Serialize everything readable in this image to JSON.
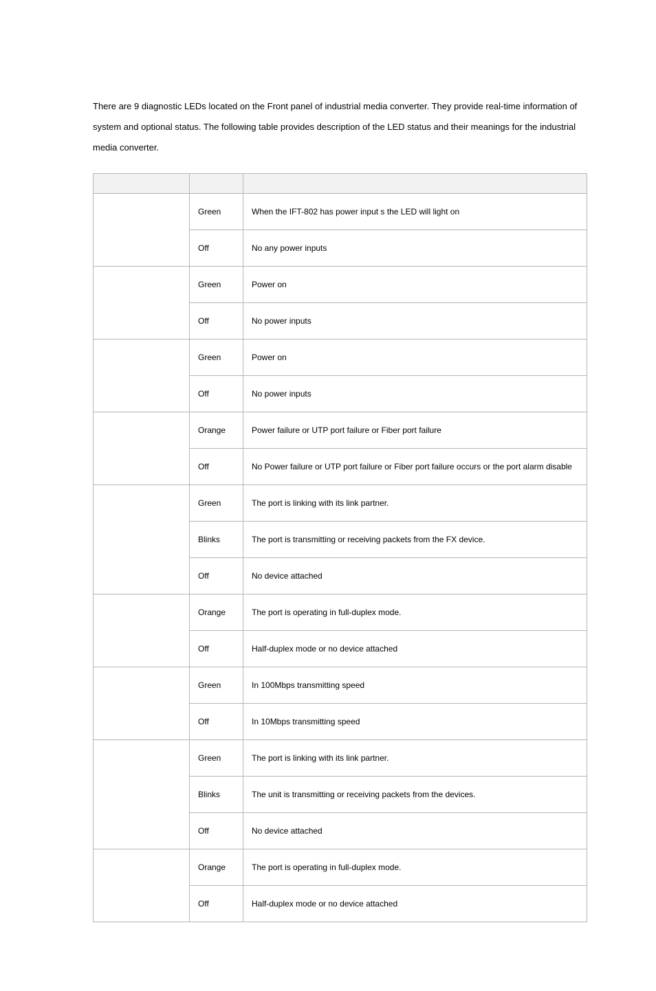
{
  "intro": "There are 9 diagnostic LEDs located on the Front panel of industrial media converter. They provide real-time information of system and optional status. The following table provides description of the LED status and their meanings for the industrial media converter.",
  "table": {
    "header": {
      "led": "",
      "color": "",
      "function": ""
    },
    "groups": [
      {
        "led": "",
        "rows": [
          {
            "color": "Green",
            "function": "When the IFT-802 has power input s the LED will light on"
          },
          {
            "color": "Off",
            "function": "No any power inputs"
          }
        ]
      },
      {
        "led": "",
        "rows": [
          {
            "color": "Green",
            "function": "Power on"
          },
          {
            "color": "Off",
            "function": "No power inputs"
          }
        ]
      },
      {
        "led": "",
        "rows": [
          {
            "color": "Green",
            "function": "Power on"
          },
          {
            "color": "Off",
            "function": "No power inputs"
          }
        ]
      },
      {
        "led": "",
        "rows": [
          {
            "color": "Orange",
            "function": "Power failure or UTP port failure or Fiber port failure"
          },
          {
            "color": "Off",
            "function": "No Power failure or UTP port failure or Fiber port failure occurs or the port alarm disable"
          }
        ]
      },
      {
        "led": "",
        "rows": [
          {
            "color": "Green",
            "function": "The port is linking with its link partner."
          },
          {
            "color": "Blinks",
            "function": "The port is transmitting or receiving packets from the FX device."
          },
          {
            "color": "Off",
            "function": "No device attached"
          }
        ]
      },
      {
        "led": "",
        "rows": [
          {
            "color": "Orange",
            "function": "The port is operating in full-duplex mode."
          },
          {
            "color": "Off",
            "function": "Half-duplex mode or no device attached"
          }
        ]
      },
      {
        "led": "",
        "rows": [
          {
            "color": "Green",
            "function": "In 100Mbps transmitting speed"
          },
          {
            "color": "Off",
            "function": "In 10Mbps transmitting speed"
          }
        ]
      },
      {
        "led": "",
        "rows": [
          {
            "color": "Green",
            "function": "The port is linking with its link partner."
          },
          {
            "color": "Blinks",
            "function": "The unit is transmitting or receiving packets from the devices."
          },
          {
            "color": "Off",
            "function": "No device attached"
          }
        ]
      },
      {
        "led": "",
        "rows": [
          {
            "color": "Orange",
            "function": "The port is operating in full-duplex mode."
          },
          {
            "color": "Off",
            "function": "Half-duplex mode or no device attached"
          }
        ]
      }
    ]
  }
}
